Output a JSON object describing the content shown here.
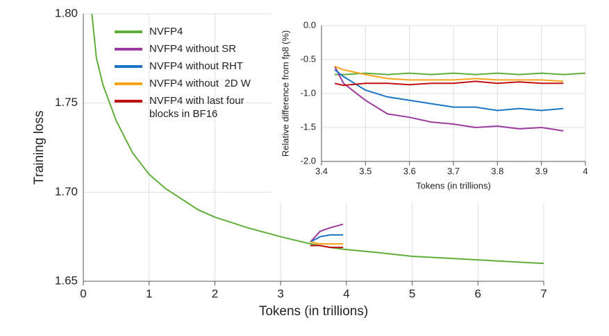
{
  "chart_data": [
    {
      "type": "line",
      "x_label": "Tokens (in trillions)",
      "y_label": "Training loss",
      "x": [
        0.13,
        0.2,
        0.3,
        0.5,
        0.75,
        1,
        1.25,
        1.5,
        1.75,
        2,
        2.5,
        3,
        3.45,
        3.6,
        3.75,
        3.95,
        4.5,
        5,
        5.5,
        6,
        6.5,
        7
      ],
      "series": [
        {
          "name": "NVFP4",
          "color": "#5fae3a",
          "values": [
            1.8,
            1.775,
            1.76,
            1.74,
            1.722,
            1.71,
            1.702,
            1.696,
            1.69,
            1.686,
            1.68,
            1.675,
            1.671,
            1.67,
            1.669,
            1.668,
            1.666,
            1.664,
            1.663,
            1.662,
            1.661,
            1.66
          ]
        },
        {
          "name": "NVFP4 without SR",
          "color": "#9b3a9e",
          "values": [
            null,
            null,
            null,
            null,
            null,
            null,
            null,
            null,
            null,
            null,
            null,
            null,
            1.672,
            1.678,
            1.68,
            1.682,
            null,
            null,
            null,
            null,
            null,
            null
          ]
        },
        {
          "name": "NVFP4 without RHT",
          "color": "#1b75c4",
          "values": [
            null,
            null,
            null,
            null,
            null,
            null,
            null,
            null,
            null,
            null,
            null,
            null,
            1.672,
            1.675,
            1.676,
            1.676,
            null,
            null,
            null,
            null,
            null,
            null
          ]
        },
        {
          "name": "NVFP4 without  2D W",
          "color": "#f7a21b",
          "values": [
            null,
            null,
            null,
            null,
            null,
            null,
            null,
            null,
            null,
            null,
            null,
            null,
            1.672,
            1.671,
            1.671,
            1.671,
            null,
            null,
            null,
            null,
            null,
            null
          ]
        },
        {
          "name": "NVFP4 with last four blocks in BF16",
          "color": "#c00f0f",
          "values": [
            null,
            null,
            null,
            null,
            null,
            null,
            null,
            null,
            null,
            null,
            null,
            null,
            1.67,
            1.67,
            1.669,
            1.669,
            null,
            null,
            null,
            null,
            null,
            null
          ]
        }
      ],
      "xlim": [
        0,
        7
      ],
      "xticks": [
        0,
        1,
        2,
        3,
        4,
        5,
        6,
        7
      ],
      "ylim": [
        1.65,
        1.8
      ],
      "yticks": [
        1.65,
        {
          "value": 1.7,
          "label": "1.70"
        },
        1.75,
        {
          "value": 1.8,
          "label": "1.80"
        }
      ],
      "grid": true,
      "legend": "upper left"
    },
    {
      "type": "line",
      "x_label": "Tokens (in trillions)",
      "y_label": "Relative difference from fp8 (%)",
      "x": [
        3.43,
        3.45,
        3.5,
        3.55,
        3.6,
        3.65,
        3.7,
        3.75,
        3.8,
        3.85,
        3.9,
        3.95,
        4.0
      ],
      "series": [
        {
          "color": "#5fae3a",
          "values": [
            -0.72,
            -0.72,
            -0.7,
            -0.72,
            -0.7,
            -0.72,
            -0.7,
            -0.72,
            -0.7,
            -0.72,
            -0.7,
            -0.72,
            -0.7
          ]
        },
        {
          "color": "#9b3a9e",
          "values": [
            -0.6,
            -0.85,
            -1.1,
            -1.3,
            -1.35,
            -1.42,
            -1.45,
            -1.5,
            -1.48,
            -1.52,
            -1.5,
            -1.55,
            null
          ]
        },
        {
          "color": "#1b75c4",
          "values": [
            -0.65,
            -0.75,
            -0.95,
            -1.05,
            -1.1,
            -1.15,
            -1.2,
            -1.2,
            -1.25,
            -1.22,
            -1.25,
            -1.22,
            null
          ]
        },
        {
          "color": "#f7a21b",
          "values": [
            -0.6,
            -0.65,
            -0.72,
            -0.78,
            -0.8,
            -0.8,
            -0.8,
            -0.78,
            -0.8,
            -0.8,
            -0.8,
            -0.82,
            null
          ]
        },
        {
          "color": "#c00f0f",
          "values": [
            -0.85,
            -0.88,
            -0.85,
            -0.85,
            -0.87,
            -0.85,
            -0.85,
            -0.82,
            -0.85,
            -0.83,
            -0.85,
            -0.85,
            null
          ]
        }
      ],
      "xlim": [
        3.4,
        4
      ],
      "xticks": [
        3.4,
        3.5,
        3.6,
        3.7,
        3.8,
        3.9,
        4
      ],
      "ylim": [
        -2,
        0
      ],
      "yticks": [
        {
          "value": 0,
          "label": "0.0"
        },
        -0.5,
        {
          "value": -1,
          "label": "-1.0"
        },
        -1.5,
        {
          "value": -2,
          "label": "-2.0"
        }
      ],
      "grid": true
    }
  ]
}
